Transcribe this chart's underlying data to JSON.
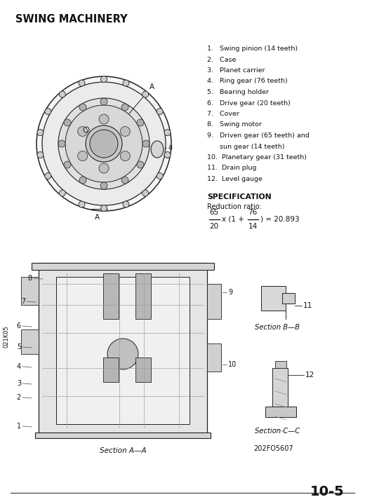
{
  "title": "SWING MACHINERY",
  "parts_list_lines": [
    "1.   Swing pinion (14 teeth)",
    "2.   Case",
    "3.   Planet carrier",
    "4.   Ring gear (76 teeth)",
    "5.   Bearing holder",
    "6.   Drive gear (20 teeth)",
    "7.   Cover",
    "8.   Swing motor",
    "9.   Driven gear (65 teeth) and",
    "      sun gear (14 teeth)",
    "10.  Planetary gear (31 teeth)",
    "11.  Drain plug",
    "12.  Level gauge"
  ],
  "spec_title": "SPECIFICATION",
  "spec_sub": "Reduction ratio:",
  "frac1_num": "65",
  "frac1_den": "20",
  "frac2_num": "76",
  "frac2_den": "14",
  "formula_rest": ") = 20.893",
  "section_a_label": "Section A—A",
  "section_b_label": "Section B—B",
  "section_c_label": "Section C—C",
  "figure_code": "202FO5607",
  "page_number": "10-5",
  "side_label": "021K05",
  "label_8": "8",
  "label_7": "7",
  "label_6": "6",
  "label_5": "5",
  "label_4": "4",
  "label_3": "3",
  "label_2": "2",
  "label_1": "1",
  "label_9": "9",
  "label_10": "10",
  "label_11": "11",
  "label_12": "12",
  "label_A_top": "A",
  "label_A_bot": "A",
  "label_a": "a",
  "bg_color": "#ffffff",
  "line_color": "#222222",
  "text_color": "#111111"
}
